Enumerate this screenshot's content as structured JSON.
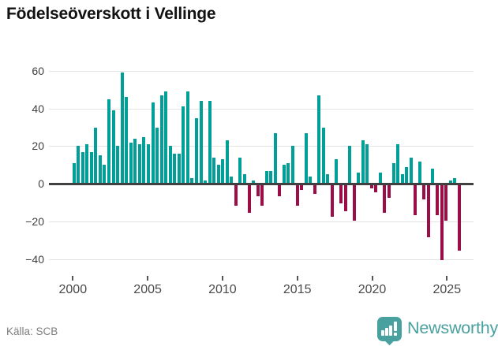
{
  "title": "Födelseöverskott i Vellinge",
  "source": "Källa: SCB",
  "branding": {
    "wordmark": "Newsworthy",
    "logo_icon": "newsworthy-bubble-barchart-icon"
  },
  "colors": {
    "positive_bar": "#00a099",
    "negative_bar": "#9b0e47",
    "zero_line": "#404040",
    "gridline": "#e3e3e3",
    "brand_teal": "#48a09f",
    "title_text": "#121212",
    "tick_text": "#4a4a4a",
    "source_text": "#7d7d7d"
  },
  "chart_data": {
    "type": "bar",
    "title": "Födelseöverskott i Vellinge",
    "xlabel": "",
    "ylabel": "",
    "ylim": [
      -45,
      65
    ],
    "grid": true,
    "legend": "none",
    "y_ticks": [
      60,
      40,
      20,
      0,
      -20,
      -40
    ],
    "x_ticks": [
      2000,
      2005,
      2010,
      2015,
      2020,
      2025
    ],
    "first_bar_year": 2000.07,
    "bar_step_years": 0.2925,
    "values": [
      11,
      20,
      17,
      21,
      17,
      30,
      15,
      10,
      45,
      39,
      20,
      59,
      46,
      22,
      24,
      21,
      25,
      21,
      43,
      30,
      47,
      49,
      20,
      16,
      16,
      41,
      49,
      3,
      35,
      44,
      2,
      44,
      14,
      10,
      13,
      23,
      4,
      -11,
      14,
      5,
      -15,
      2,
      -6,
      -11,
      7,
      7,
      27,
      -6,
      10,
      11,
      20,
      -11,
      -3,
      27,
      4,
      -5,
      47,
      30,
      5,
      -17,
      13,
      -10,
      -14,
      20,
      -19,
      6,
      23,
      21,
      -2,
      -4,
      6,
      -15,
      -7,
      11,
      21,
      5,
      9,
      14,
      -16,
      12,
      -8,
      -28,
      8,
      -16,
      -40,
      -19,
      2,
      3,
      -35
    ]
  }
}
